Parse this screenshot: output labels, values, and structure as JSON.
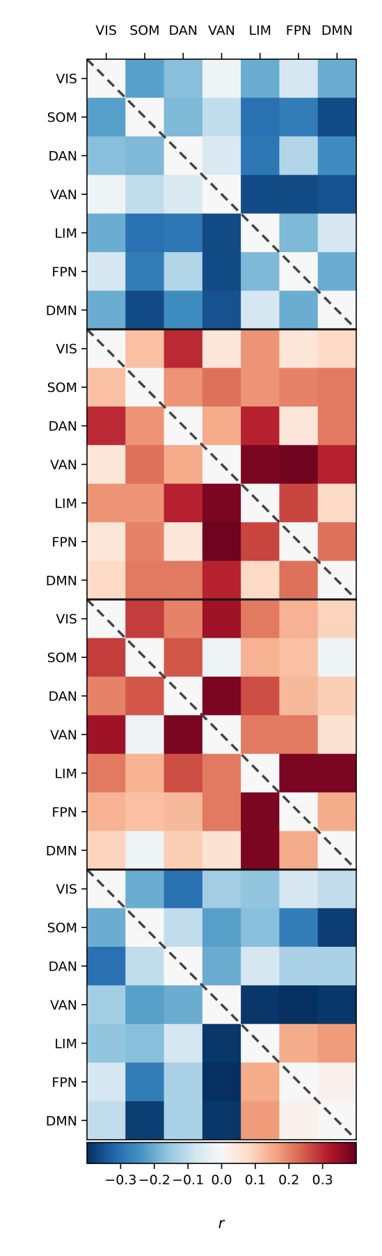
{
  "chart_data": {
    "type": "heatmap",
    "networks": [
      "VIS",
      "SOM",
      "DAN",
      "VAN",
      "LIM",
      "FPN",
      "DMN"
    ],
    "colorbar": {
      "label": "r",
      "range": [
        -0.4,
        0.4
      ],
      "ticks": [
        "−0.3",
        "−0.2",
        "−0.1",
        "0.0",
        "0.1",
        "0.2",
        "0.3"
      ],
      "tick_values": [
        -0.3,
        -0.2,
        -0.1,
        0.0,
        0.1,
        0.2,
        0.3
      ],
      "colormap": "RdBu_r"
    },
    "diagonal": "dashed line, off-diagonal symmetric",
    "panels": [
      {
        "matrix": [
          [
            0,
            -0.22,
            -0.17,
            -0.02,
            -0.2,
            -0.07,
            -0.2
          ],
          [
            -0.22,
            0,
            -0.18,
            -0.1,
            -0.3,
            -0.28,
            -0.36
          ],
          [
            -0.17,
            -0.18,
            0,
            -0.06,
            -0.29,
            -0.12,
            -0.25
          ],
          [
            -0.02,
            -0.1,
            -0.06,
            0,
            -0.36,
            -0.36,
            -0.35
          ],
          [
            -0.2,
            -0.3,
            -0.29,
            -0.36,
            0,
            -0.18,
            -0.07
          ],
          [
            -0.07,
            -0.28,
            -0.12,
            -0.36,
            -0.18,
            0,
            -0.2
          ],
          [
            -0.2,
            -0.36,
            -0.25,
            -0.35,
            -0.07,
            -0.2,
            0
          ]
        ]
      },
      {
        "matrix": [
          [
            0,
            0.12,
            0.3,
            0.05,
            0.18,
            0.05,
            0.08
          ],
          [
            0.12,
            0,
            0.18,
            0.22,
            0.18,
            0.2,
            0.21
          ],
          [
            0.3,
            0.18,
            0,
            0.15,
            0.31,
            0.05,
            0.21
          ],
          [
            0.05,
            0.22,
            0.15,
            0,
            0.38,
            0.39,
            0.31
          ],
          [
            0.18,
            0.18,
            0.31,
            0.38,
            0,
            0.27,
            0.08
          ],
          [
            0.05,
            0.2,
            0.05,
            0.39,
            0.27,
            0,
            0.22
          ],
          [
            0.08,
            0.21,
            0.21,
            0.31,
            0.08,
            0.22,
            0
          ]
        ]
      },
      {
        "matrix": [
          [
            0,
            0.28,
            0.2,
            0.34,
            0.21,
            0.14,
            0.09
          ],
          [
            0.28,
            0,
            0.25,
            -0.02,
            0.14,
            0.12,
            -0.02
          ],
          [
            0.2,
            0.25,
            0,
            0.38,
            0.26,
            0.13,
            0.1
          ],
          [
            0.34,
            -0.02,
            0.38,
            0,
            0.21,
            0.21,
            0.06
          ],
          [
            0.21,
            0.14,
            0.26,
            0.21,
            0,
            0.38,
            0.38
          ],
          [
            0.14,
            0.12,
            0.13,
            0.21,
            0.38,
            0,
            0.15
          ],
          [
            0.09,
            -0.02,
            0.1,
            0.06,
            0.38,
            0.15,
            0
          ]
        ]
      },
      {
        "matrix": [
          [
            0,
            -0.2,
            -0.3,
            -0.14,
            -0.16,
            -0.07,
            -0.1
          ],
          [
            -0.2,
            0,
            -0.1,
            -0.22,
            -0.17,
            -0.28,
            -0.38
          ],
          [
            -0.3,
            -0.1,
            0,
            -0.2,
            -0.07,
            -0.13,
            -0.13
          ],
          [
            -0.14,
            -0.22,
            -0.2,
            0,
            -0.39,
            -0.42,
            -0.39
          ],
          [
            -0.16,
            -0.17,
            -0.07,
            -0.39,
            0,
            0.15,
            0.17
          ],
          [
            -0.07,
            -0.28,
            -0.13,
            -0.42,
            0.15,
            0,
            0.02
          ],
          [
            -0.1,
            -0.38,
            -0.13,
            -0.39,
            0.17,
            0.02,
            0
          ]
        ]
      }
    ]
  }
}
